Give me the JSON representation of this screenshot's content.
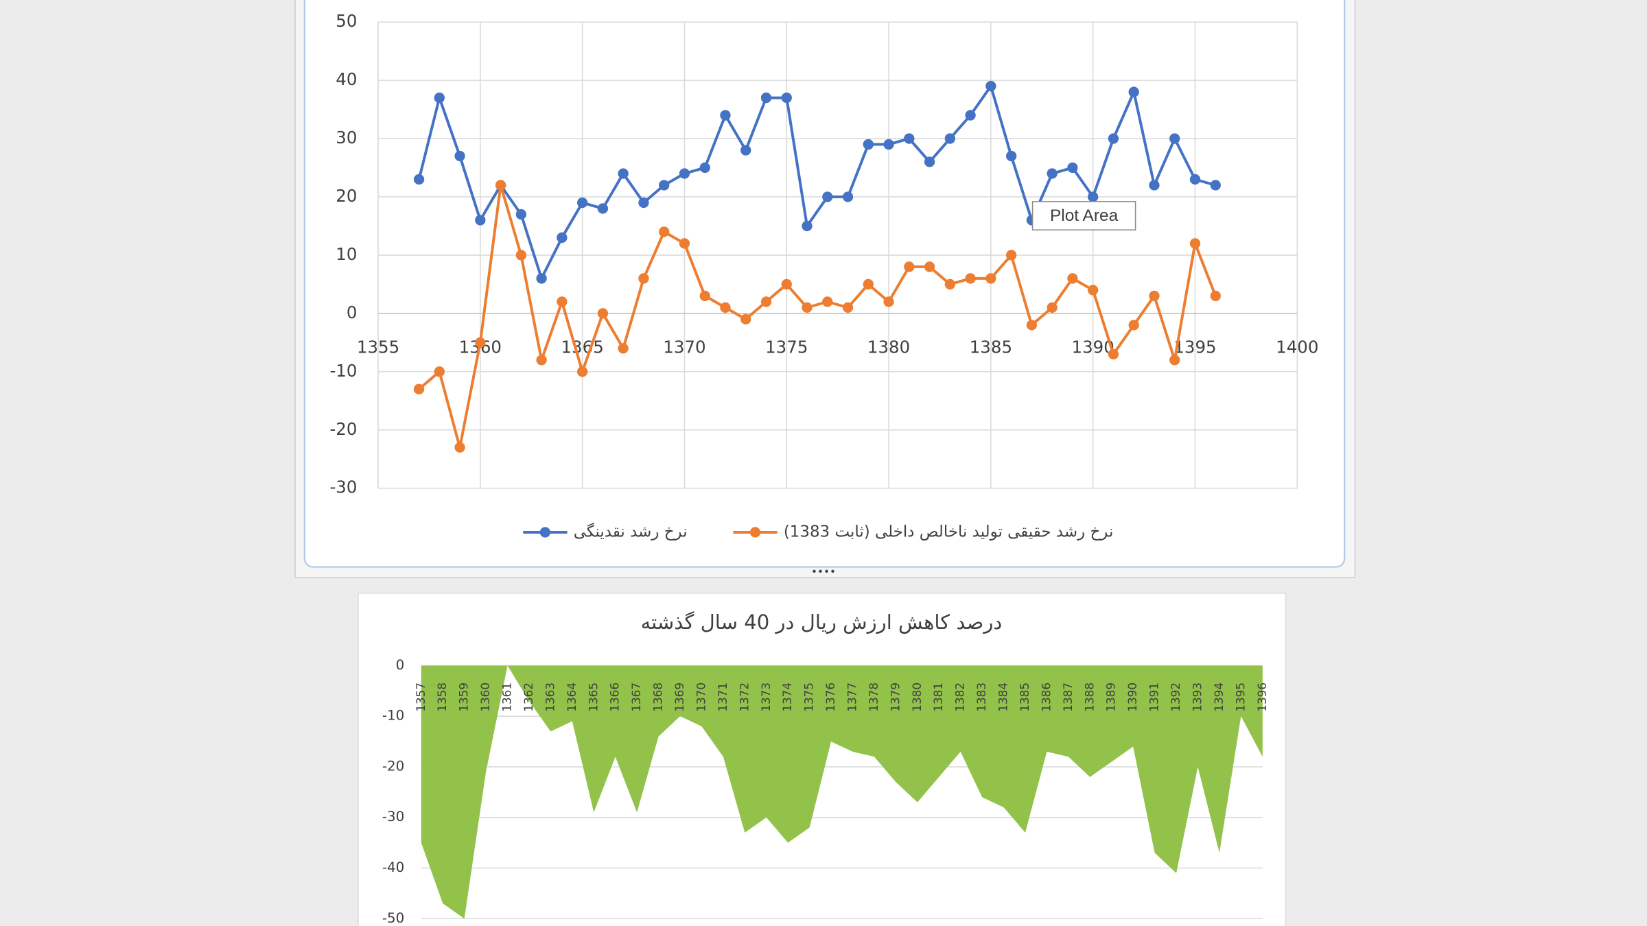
{
  "chart_data": [
    {
      "type": "line",
      "x": [
        1357,
        1358,
        1359,
        1360,
        1361,
        1362,
        1363,
        1364,
        1365,
        1366,
        1367,
        1368,
        1369,
        1370,
        1371,
        1372,
        1373,
        1374,
        1375,
        1376,
        1377,
        1378,
        1379,
        1380,
        1381,
        1382,
        1383,
        1384,
        1385,
        1386,
        1387,
        1388,
        1389,
        1390,
        1391,
        1392,
        1393,
        1394,
        1395,
        1396
      ],
      "series": [
        {
          "name": "نرخ رشد نقدینگی",
          "color": "#4472c4",
          "values": [
            23,
            37,
            27,
            16,
            22,
            17,
            6,
            13,
            19,
            18,
            24,
            19,
            22,
            24,
            25,
            34,
            28,
            37,
            37,
            15,
            20,
            20,
            29,
            29,
            30,
            26,
            30,
            34,
            39,
            27,
            16,
            24,
            25,
            20,
            30,
            38,
            22,
            30,
            23,
            22
          ]
        },
        {
          "name": "نرخ رشد حقیقی تولید ناخالص داخلی (ثابت 1383)",
          "color": "#ed7d31",
          "values": [
            -13,
            -10,
            -23,
            -5,
            22,
            10,
            -8,
            2,
            -10,
            0,
            -6,
            6,
            14,
            12,
            3,
            1,
            -1,
            2,
            5,
            1,
            2,
            1,
            5,
            2,
            8,
            8,
            5,
            6,
            6,
            10,
            -2,
            1,
            6,
            4,
            -7,
            -2,
            3,
            -8,
            12,
            3
          ]
        }
      ],
      "xlim": [
        1355,
        1400
      ],
      "xticks": [
        1355,
        1360,
        1365,
        1370,
        1375,
        1380,
        1385,
        1390,
        1395,
        1400
      ],
      "ylim": [
        -30,
        50
      ],
      "yticks": [
        -30,
        -20,
        -10,
        0,
        10,
        20,
        30,
        40,
        50
      ],
      "grid": true,
      "legend": "bottom",
      "tooltip": "Plot Area"
    },
    {
      "type": "area",
      "title": "درصد کاهش ارزش ریال در 40 سال گذشته",
      "categories": [
        "1357",
        "1358",
        "1359",
        "1360",
        "1361",
        "1362",
        "1363",
        "1364",
        "1365",
        "1366",
        "1367",
        "1368",
        "1369",
        "1370",
        "1371",
        "1372",
        "1373",
        "1374",
        "1375",
        "1376",
        "1377",
        "1378",
        "1379",
        "1380",
        "1381",
        "1382",
        "1383",
        "1384",
        "1385",
        "1386",
        "1387",
        "1388",
        "1389",
        "1390",
        "1391",
        "1392",
        "1393",
        "1394",
        "1395",
        "1396"
      ],
      "values": [
        -35,
        -47,
        -50,
        -21,
        0,
        -7,
        -13,
        -11,
        -29,
        -18,
        -29,
        -14,
        -10,
        -12,
        -18,
        -33,
        -30,
        -35,
        -32,
        -15,
        -17,
        -18,
        -23,
        -27,
        -22,
        -17,
        -26,
        -28,
        -33,
        -17,
        -18,
        -22,
        -19,
        -16,
        -37,
        -41,
        -20,
        -37,
        -10,
        -18
      ],
      "color": "#92c24a",
      "ylim": [
        -50,
        0
      ],
      "yticks": [
        -50,
        -40,
        -30,
        -20,
        -10,
        0
      ],
      "grid": true
    }
  ]
}
